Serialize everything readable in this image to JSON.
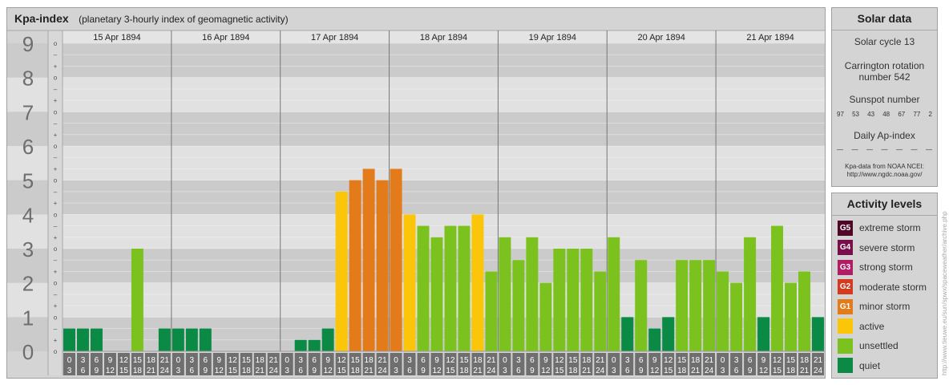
{
  "title": "Kpa-index",
  "subtitle": "(planetary 3-hourly index of geomagnetic activity)",
  "chart_data": {
    "type": "bar",
    "ylim": [
      0,
      9
    ],
    "y_ticks": [
      "0",
      "1",
      "2",
      "3",
      "4",
      "5",
      "6",
      "7",
      "8",
      "9"
    ],
    "minor_ticks": [
      "o",
      "+",
      "–"
    ],
    "days": [
      "15 Apr 1894",
      "16 Apr 1894",
      "17 Apr 1894",
      "18 Apr 1894",
      "19 Apr 1894",
      "20 Apr 1894",
      "21 Apr 1894"
    ],
    "interval_labels": [
      [
        "0",
        "3"
      ],
      [
        "3",
        "6"
      ],
      [
        "6",
        "9"
      ],
      [
        "9",
        "12"
      ],
      [
        "12",
        "15"
      ],
      [
        "15",
        "18"
      ],
      [
        "18",
        "21"
      ],
      [
        "21",
        "24"
      ]
    ],
    "values": [
      [
        0.667,
        0.667,
        0.667,
        0,
        0,
        3,
        0,
        0.667
      ],
      [
        0.667,
        0.667,
        0.667,
        0,
        0,
        0,
        0,
        0
      ],
      [
        0,
        0.333,
        0.333,
        0.667,
        4.667,
        5,
        5.333,
        5
      ],
      [
        5.333,
        4,
        3.667,
        3.333,
        3.667,
        3.667,
        4,
        2.333
      ],
      [
        3.333,
        2.667,
        3.333,
        2,
        3,
        3,
        3,
        2.333
      ],
      [
        3.333,
        1,
        2.667,
        0.667,
        1,
        2.667,
        2.667,
        2.667
      ],
      [
        2.333,
        2,
        3.333,
        1,
        3.667,
        2,
        2.333,
        1
      ]
    ]
  },
  "colors": {
    "quiet": "#0b8a45",
    "unsettled": "#7cc21e",
    "active": "#fbc50a",
    "minor_storm": "#e47b1a",
    "moderate_storm": "#d5391e",
    "strong_storm": "#b31b65",
    "severe_storm": "#7a0e4c",
    "extreme_storm": "#500726"
  },
  "solar": {
    "header": "Solar data",
    "cycle": "Solar cycle 13",
    "carrington_line1": "Carrington rotation",
    "carrington_line2": "number 542",
    "sunspot_label": "Sunspot number",
    "sunspots": [
      "97",
      "53",
      "43",
      "48",
      "67",
      "77",
      "2"
    ],
    "ap_label": "Daily Ap-index",
    "ap_values": [
      "—",
      "—",
      "—",
      "—",
      "—",
      "—",
      "—"
    ],
    "source_line1": "Kpa-data from NOAA NCEI:",
    "source_line2": "http://www.ngdc.noaa.gov/"
  },
  "activity": {
    "header": "Activity levels",
    "items": [
      {
        "badge": "G5",
        "label": "extreme storm",
        "color": "#500726"
      },
      {
        "badge": "G4",
        "label": "severe storm",
        "color": "#7a0e4c"
      },
      {
        "badge": "G3",
        "label": "strong storm",
        "color": "#b31b65"
      },
      {
        "badge": "G2",
        "label": "moderate storm",
        "color": "#d5391e"
      },
      {
        "badge": "G1",
        "label": "minor storm",
        "color": "#e47b1a"
      },
      {
        "badge": "",
        "label": "active",
        "color": "#fbc50a"
      },
      {
        "badge": "",
        "label": "unsettled",
        "color": "#7cc21e"
      },
      {
        "badge": "",
        "label": "quiet",
        "color": "#0b8a45"
      }
    ]
  },
  "watermark": "http://www.tieuwe.eu/sun/spwx/spaceweather/archive.php"
}
